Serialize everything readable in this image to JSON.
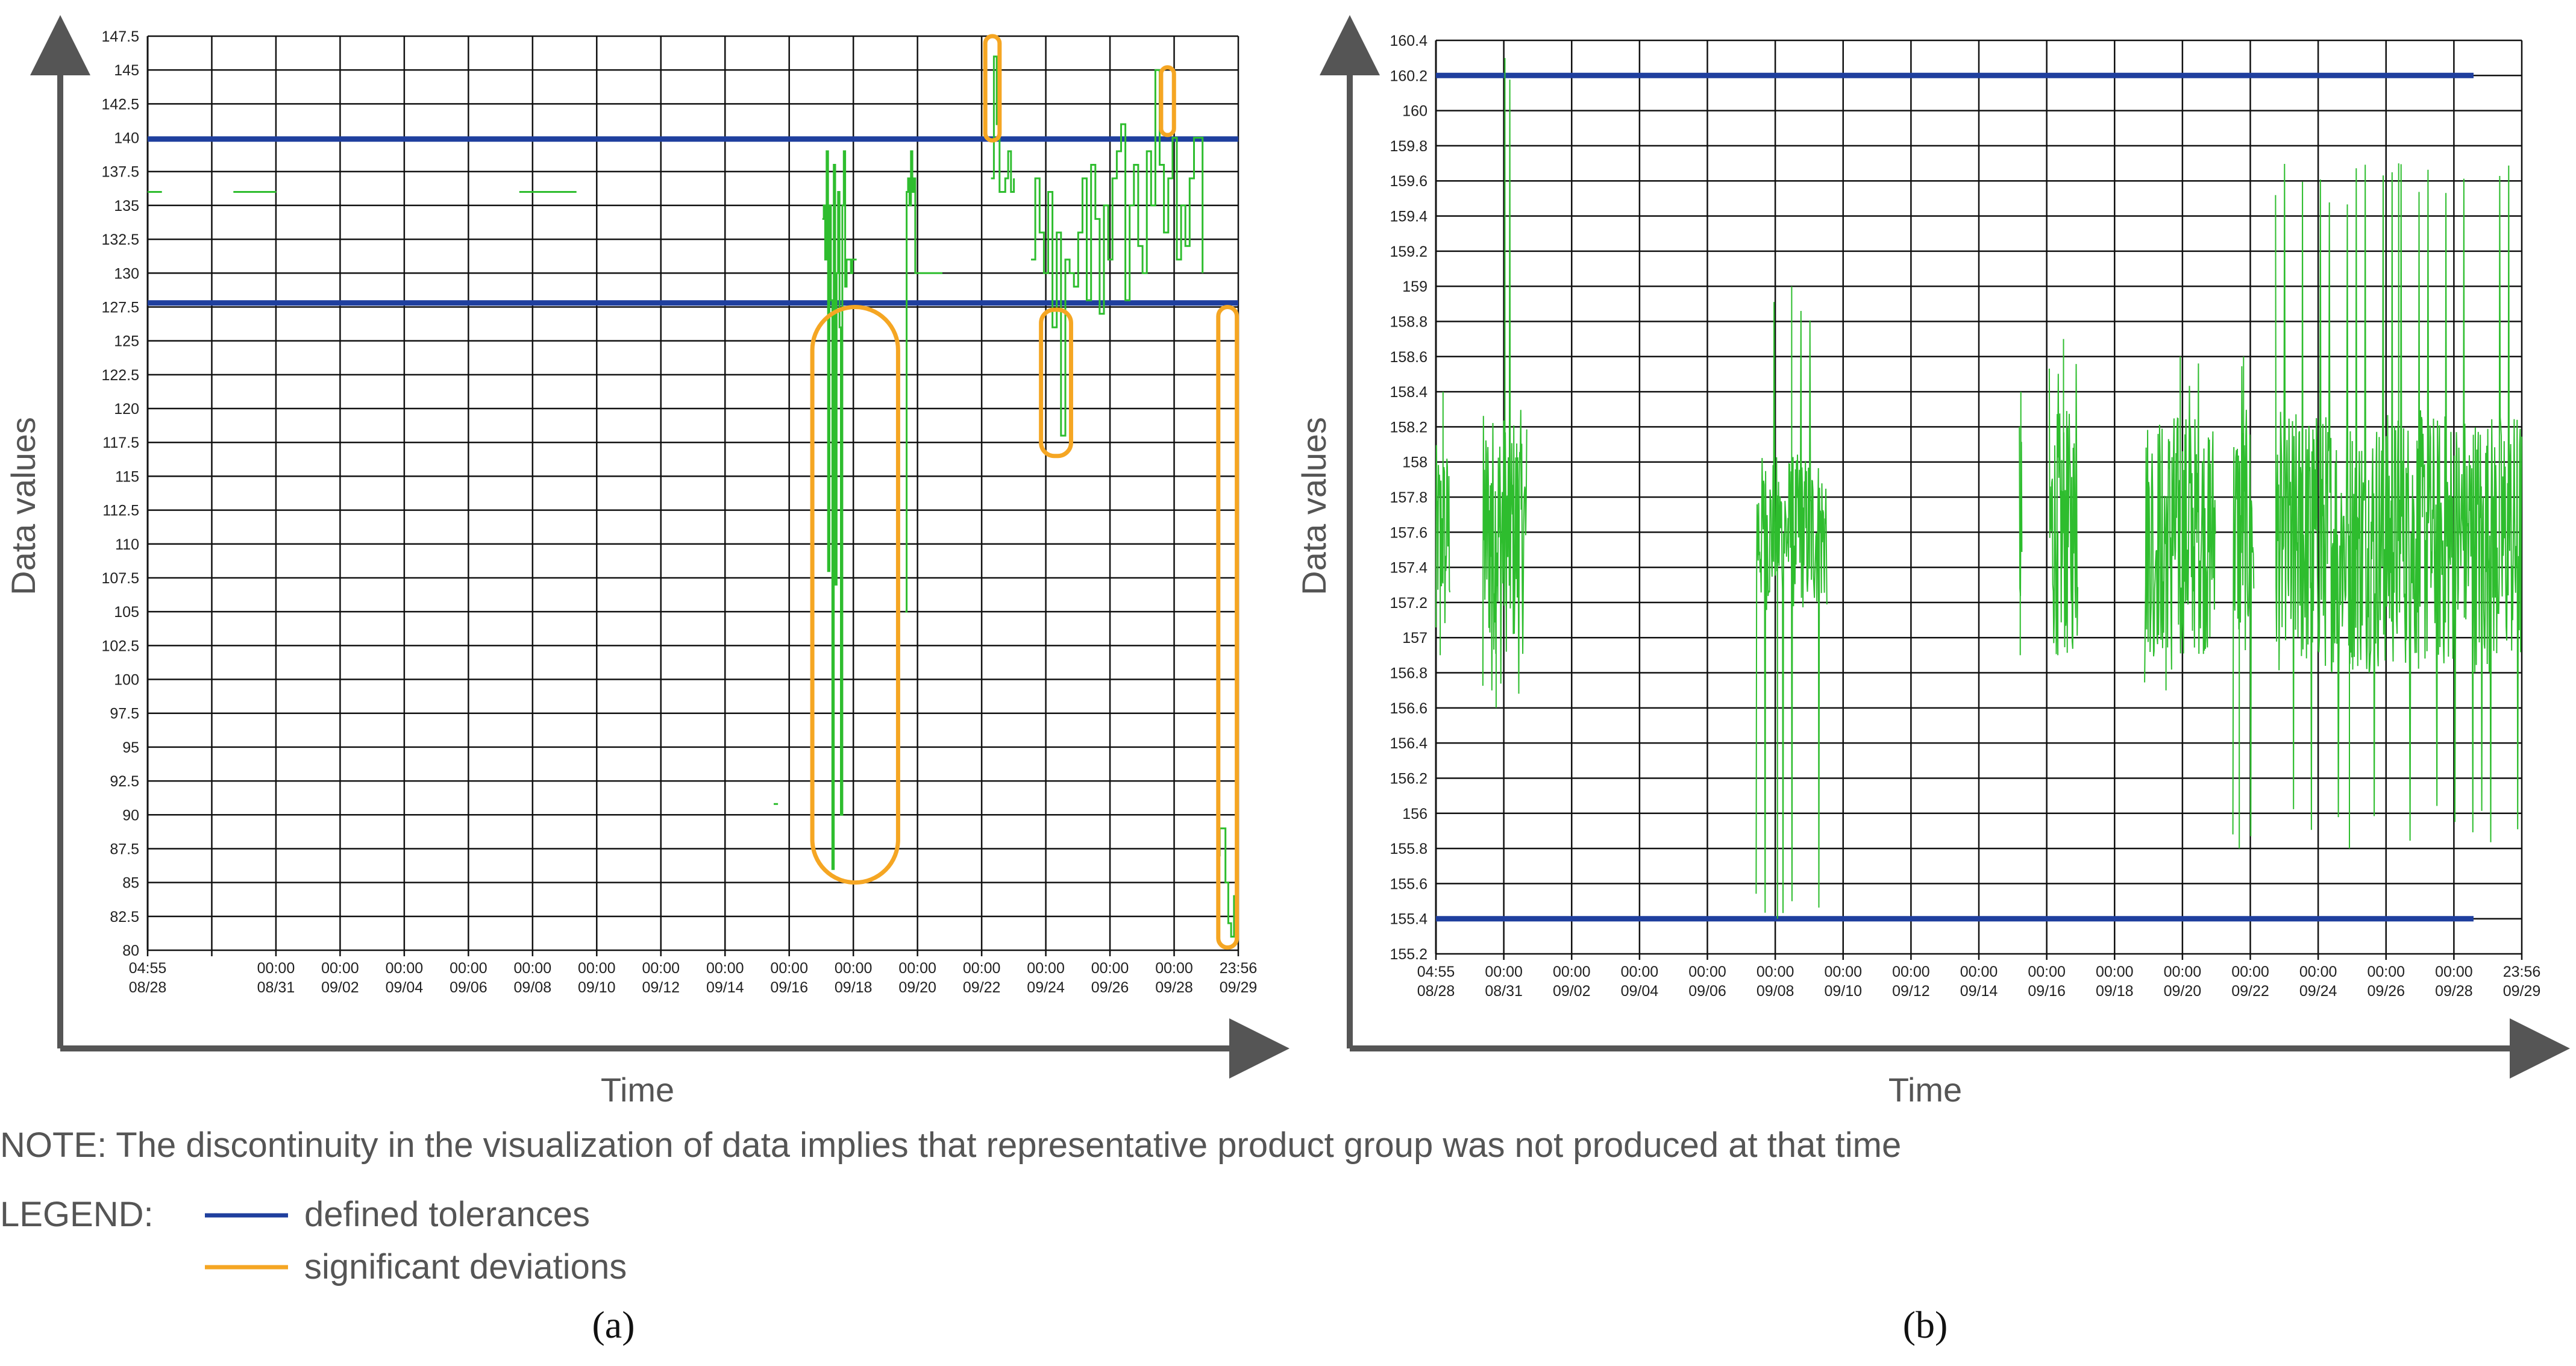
{
  "chart_data": [
    {
      "type": "line",
      "panel": "(a)",
      "xlabel": "Time",
      "ylabel": "Data values",
      "x_range_hours": [
        0,
        763
      ],
      "ylim": [
        80,
        147.5
      ],
      "yticks": [
        80,
        82.5,
        85,
        87.5,
        90,
        92.5,
        95,
        97.5,
        100,
        102.5,
        105,
        107.5,
        110,
        112.5,
        115,
        117.5,
        120,
        122.5,
        125,
        127.5,
        130,
        132.5,
        135,
        137.5,
        140,
        142.5,
        145,
        147.5
      ],
      "xticks": [
        {
          "time": "04:55",
          "date": "08/28"
        },
        {
          "time": "",
          "date": ""
        },
        {
          "time": "00:00",
          "date": "08/31"
        },
        {
          "time": "00:00",
          "date": "09/02"
        },
        {
          "time": "00:00",
          "date": "09/04"
        },
        {
          "time": "00:00",
          "date": "09/06"
        },
        {
          "time": "00:00",
          "date": "09/08"
        },
        {
          "time": "00:00",
          "date": "09/10"
        },
        {
          "time": "00:00",
          "date": "09/12"
        },
        {
          "time": "00:00",
          "date": "09/14"
        },
        {
          "time": "00:00",
          "date": "09/16"
        },
        {
          "time": "00:00",
          "date": "09/18"
        },
        {
          "time": "00:00",
          "date": "09/20"
        },
        {
          "time": "00:00",
          "date": "09/22"
        },
        {
          "time": "00:00",
          "date": "09/24"
        },
        {
          "time": "00:00",
          "date": "09/26"
        },
        {
          "time": "00:00",
          "date": "09/28"
        },
        {
          "time": "23:56",
          "date": "09/29"
        }
      ],
      "tolerances": [
        127.8,
        139.9
      ],
      "series": [
        {
          "name": "g1",
          "x": [
            0,
            10
          ],
          "y": [
            136,
            136
          ]
        },
        {
          "name": "g2",
          "x": [
            60,
            90
          ],
          "y": [
            136,
            136
          ]
        },
        {
          "name": "g3",
          "x": [
            260,
            300
          ],
          "y": [
            136,
            136
          ]
        },
        {
          "name": "g4",
          "x": [
            438,
            441
          ],
          "y": [
            90.8,
            90.8
          ]
        },
        {
          "name": "g5",
          "x": [
            472,
            473,
            474,
            475,
            476,
            477,
            478,
            479,
            480,
            481,
            482,
            483,
            484,
            485,
            486,
            487,
            488,
            489,
            490,
            491,
            492,
            493,
            494,
            495,
            496
          ],
          "y": [
            134,
            135,
            131,
            139,
            108,
            135,
            128,
            86,
            138,
            107,
            130,
            136,
            126,
            90,
            135,
            139,
            129,
            131,
            131,
            131,
            130,
            131,
            131,
            131,
            131
          ]
        },
        {
          "name": "g6",
          "x": [
            530,
            531,
            532,
            533,
            534,
            535,
            536,
            537,
            538,
            539,
            540,
            541,
            542,
            543,
            544,
            545,
            546,
            547,
            548,
            549,
            550,
            551,
            552,
            553,
            554,
            555,
            556
          ],
          "y": [
            105,
            136,
            137,
            135,
            139,
            136,
            137,
            130,
            130,
            130,
            130,
            130,
            130,
            130,
            130,
            130,
            130,
            130,
            130,
            130,
            130,
            130,
            130,
            130,
            130,
            130,
            130
          ]
        },
        {
          "name": "g7",
          "x": [
            590,
            592,
            594,
            596,
            598,
            600,
            602,
            604,
            606
          ],
          "y": [
            137,
            146,
            141,
            136,
            136,
            137,
            139,
            136,
            137
          ]
        },
        {
          "name": "g8",
          "x": [
            618,
            621,
            624,
            627,
            630,
            633,
            636,
            639,
            642,
            645,
            648,
            651,
            654,
            657,
            660,
            663,
            666,
            669,
            672,
            675,
            678,
            681,
            684,
            687,
            690,
            693,
            696,
            699,
            702,
            705,
            708,
            711,
            714,
            717,
            720,
            723,
            726,
            729,
            732,
            735,
            738
          ],
          "y": [
            131,
            137,
            133,
            130,
            136,
            126,
            133,
            118,
            131,
            130,
            129,
            133,
            137,
            128,
            138,
            134,
            127,
            135,
            131,
            137,
            139,
            141,
            128,
            135,
            138,
            132,
            130,
            139,
            135,
            145,
            138,
            133,
            137,
            140,
            131,
            135,
            132,
            137,
            140,
            140,
            130
          ]
        },
        {
          "name": "g9",
          "x": [
            748,
            750,
            752,
            754,
            756,
            758,
            760,
            762
          ],
          "y": [
            87,
            89,
            89,
            85,
            82,
            81,
            84,
            85
          ]
        }
      ],
      "deviations": "significant deviations"
    },
    {
      "type": "line",
      "panel": "(b)",
      "xlabel": "Time",
      "ylabel": "Data values",
      "x_range_hours": [
        0,
        763
      ],
      "ylim": [
        155.2,
        160.4
      ],
      "yticks": [
        155.2,
        155.4,
        155.6,
        155.8,
        156,
        156.2,
        156.4,
        156.6,
        156.8,
        157,
        157.2,
        157.4,
        157.6,
        157.8,
        158,
        158.2,
        158.4,
        158.6,
        158.8,
        159,
        159.2,
        159.4,
        159.6,
        159.8,
        160,
        160.2,
        160.4
      ],
      "xticks": [
        {
          "time": "04:55",
          "date": "08/28"
        },
        {
          "time": "00:00",
          "date": "08/31"
        },
        {
          "time": "00:00",
          "date": "09/02"
        },
        {
          "time": "00:00",
          "date": "09/04"
        },
        {
          "time": "00:00",
          "date": "09/06"
        },
        {
          "time": "00:00",
          "date": "09/08"
        },
        {
          "time": "00:00",
          "date": "09/10"
        },
        {
          "time": "00:00",
          "date": "09/12"
        },
        {
          "time": "00:00",
          "date": "09/14"
        },
        {
          "time": "00:00",
          "date": "09/16"
        },
        {
          "time": "00:00",
          "date": "09/18"
        },
        {
          "time": "00:00",
          "date": "09/20"
        },
        {
          "time": "00:00",
          "date": "09/22"
        },
        {
          "time": "00:00",
          "date": "09/24"
        },
        {
          "time": "00:00",
          "date": "09/26"
        },
        {
          "time": "00:00",
          "date": "09/28"
        },
        {
          "time": "23:56",
          "date": "09/29"
        }
      ],
      "tolerances": [
        155.4,
        160.2
      ],
      "bursts": [
        {
          "x_start": 0,
          "x_end": 10,
          "center": 157.6,
          "amp": 0.5,
          "min": 156.9,
          "max": 158.4
        },
        {
          "x_start": 33,
          "x_end": 64,
          "center": 157.6,
          "amp": 0.7,
          "min": 156.6,
          "max": 160.3
        },
        {
          "x_start": 225,
          "x_end": 275,
          "center": 157.6,
          "amp": 0.45,
          "min": 155.4,
          "max": 159.0
        },
        {
          "x_start": 410,
          "x_end": 412,
          "center": 157.6,
          "amp": 0.6,
          "min": 156.9,
          "max": 158.4
        },
        {
          "x_start": 431,
          "x_end": 451,
          "center": 157.6,
          "amp": 0.7,
          "min": 156.9,
          "max": 158.7
        },
        {
          "x_start": 498,
          "x_end": 548,
          "center": 157.6,
          "amp": 0.7,
          "min": 156.7,
          "max": 158.6
        },
        {
          "x_start": 560,
          "x_end": 575,
          "center": 157.6,
          "amp": 0.7,
          "min": 155.8,
          "max": 158.6
        },
        {
          "x_start": 590,
          "x_end": 763,
          "center": 157.55,
          "amp": 0.75,
          "min": 155.8,
          "max": 159.7
        }
      ]
    }
  ],
  "labels": {
    "panel_a": "(a)",
    "panel_b": "(b)",
    "xlabel_a": "Time",
    "xlabel_b": "Time",
    "ylabel_a": "Data values",
    "ylabel_b": "Data values",
    "note": "NOTE: The discontinuity in the visualization of data implies that representative product group was not produced at that time",
    "legend_title": "LEGEND:",
    "legend_tolerance": "defined tolerances",
    "legend_deviation": "significant deviations"
  },
  "colors": {
    "data": "#2ebd2e",
    "tolerance": "#1f3f9e",
    "deviation": "#f5a623",
    "grid": "#111111",
    "axis": "#555555"
  }
}
